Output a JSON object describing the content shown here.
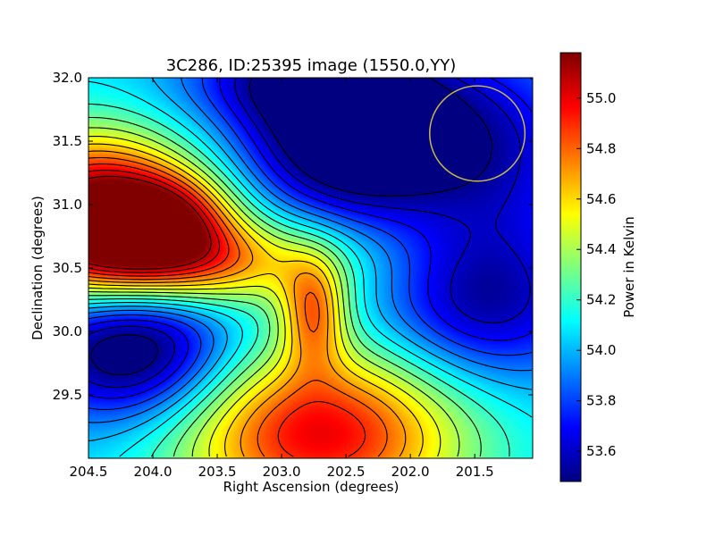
{
  "chart_data": {
    "type": "heatmap",
    "title": "3C286, ID:25395 image (1550.0,YY)",
    "xlabel": "Right Ascension (degrees)",
    "ylabel": "Declination (degrees)",
    "colorbar_label": "Power in Kelvin",
    "colormap": "jet",
    "xlim": [
      204.5,
      201.05
    ],
    "ylim": [
      29.0,
      32.0
    ],
    "clim": [
      53.48,
      55.18
    ],
    "x_ticks": [
      204.5,
      204.0,
      203.5,
      203.0,
      202.5,
      202.0,
      201.5
    ],
    "x_tick_labels": [
      "204.5",
      "204.0",
      "203.5",
      "203.0",
      "202.5",
      "202.0",
      "201.5"
    ],
    "y_ticks": [
      29.5,
      30.0,
      30.5,
      31.0,
      31.5,
      32.0
    ],
    "y_tick_labels": [
      "29.5",
      "30.0",
      "30.5",
      "31.0",
      "31.5",
      "32.0"
    ],
    "colorbar_ticks": [
      53.6,
      53.8,
      54.0,
      54.2,
      54.4,
      54.6,
      54.8,
      55.0
    ],
    "colorbar_tick_labels": [
      "53.6",
      "53.8",
      "54.0",
      "54.2",
      "54.4",
      "54.6",
      "54.8",
      "55.0"
    ],
    "contour_interval": 0.1,
    "beam_circle": {
      "ra": 201.48,
      "dec": 31.56,
      "radius_deg": 0.37,
      "color": "#c8b84a"
    },
    "field_components": [
      {
        "ra": 204.45,
        "dec": 30.95,
        "amplitude": 1.2,
        "sigma_ra": 0.55,
        "sigma_dec": 0.42
      },
      {
        "ra": 203.85,
        "dec": 30.9,
        "amplitude": 0.55,
        "sigma_ra": 0.35,
        "sigma_dec": 0.25
      },
      {
        "ra": 202.75,
        "dec": 30.15,
        "amplitude": 0.6,
        "sigma_ra": 0.18,
        "sigma_dec": 0.3
      },
      {
        "ra": 202.7,
        "dec": 29.2,
        "amplitude": 0.95,
        "sigma_ra": 0.8,
        "sigma_dec": 0.5
      },
      {
        "ra": 203.7,
        "dec": 30.55,
        "amplitude": 0.7,
        "sigma_ra": 0.8,
        "sigma_dec": 0.25
      },
      {
        "ra": 202.4,
        "dec": 31.55,
        "amplitude": -0.9,
        "sigma_ra": 0.6,
        "sigma_dec": 0.45
      },
      {
        "ra": 202.9,
        "dec": 32.0,
        "amplitude": -0.4,
        "sigma_ra": 0.6,
        "sigma_dec": 0.25
      },
      {
        "ra": 204.15,
        "dec": 29.85,
        "amplitude": -0.75,
        "sigma_ra": 0.55,
        "sigma_dec": 0.4
      },
      {
        "ra": 201.45,
        "dec": 30.2,
        "amplitude": -0.5,
        "sigma_ra": 0.6,
        "sigma_dec": 0.45
      },
      {
        "ra": 201.25,
        "dec": 31.4,
        "amplitude": -0.35,
        "sigma_ra": 0.5,
        "sigma_dec": 0.6
      }
    ],
    "field_baseline": 54.05
  }
}
